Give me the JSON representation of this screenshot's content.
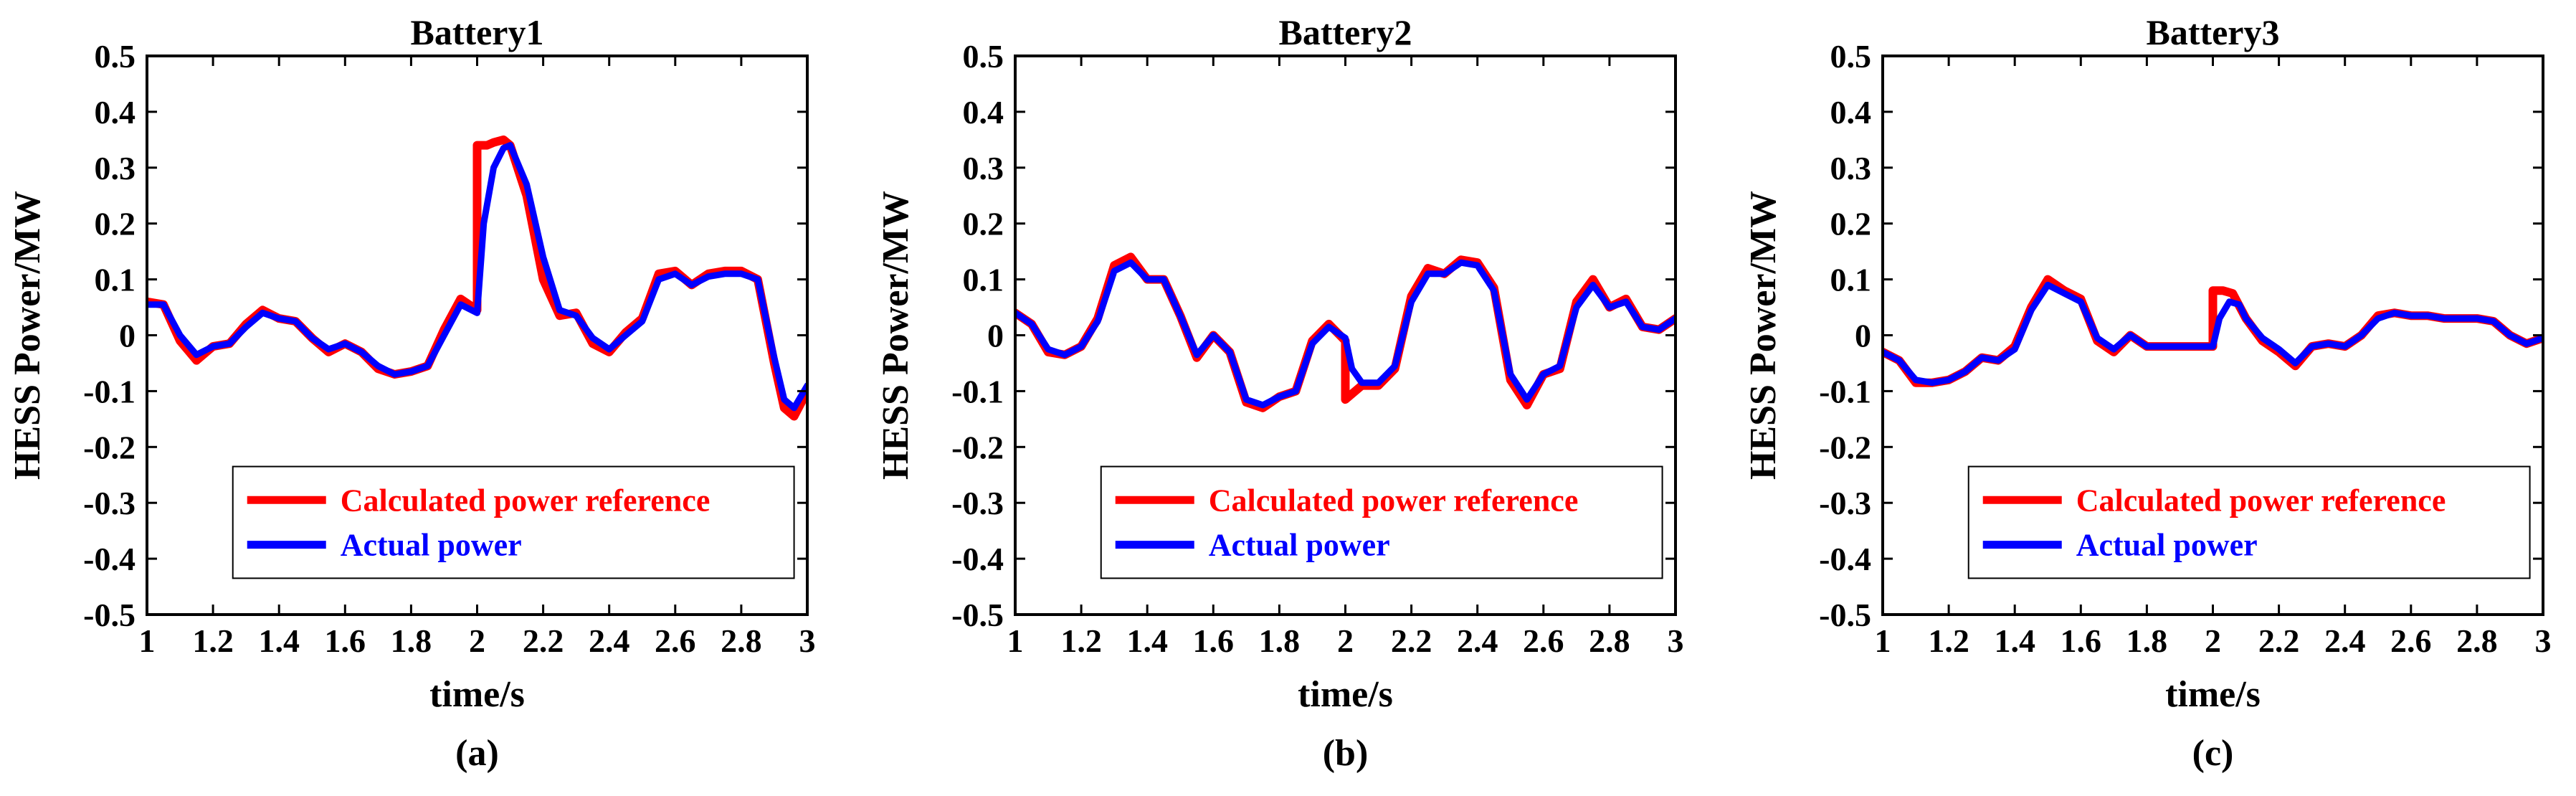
{
  "figure": {
    "ylabel": "HESS Power/MW",
    "xlabel": "time/s",
    "legend_labels": [
      "Calculated power reference",
      "Actual power"
    ],
    "colors": {
      "reference": "#ff0000",
      "actual": "#0000ff"
    }
  },
  "chart_data": [
    {
      "type": "line",
      "title": "Battery1",
      "panel_label": "(a)",
      "xlabel": "time/s",
      "ylabel": "HESS Power/MW",
      "xlim": [
        1,
        3
      ],
      "ylim": [
        -0.5,
        0.5
      ],
      "xticks": [
        "1",
        "1.2",
        "1.4",
        "1.6",
        "1.8",
        "2",
        "2.2",
        "2.4",
        "2.6",
        "2.8",
        "3"
      ],
      "yticks": [
        "-0.5",
        "-0.4",
        "-0.3",
        "-0.2",
        "-0.1",
        "0",
        "0.1",
        "0.2",
        "0.3",
        "0.4",
        "0.5"
      ],
      "legend": "bottom-right",
      "series": [
        {
          "name": "Calculated power reference",
          "color": "#ff0000",
          "x": [
            1,
            1.05,
            1.1,
            1.15,
            1.2,
            1.25,
            1.3,
            1.35,
            1.4,
            1.45,
            1.5,
            1.55,
            1.6,
            1.65,
            1.7,
            1.75,
            1.8,
            1.85,
            1.9,
            1.95,
            2.0,
            2.0,
            2.03,
            2.05,
            2.08,
            2.1,
            2.15,
            2.2,
            2.25,
            2.3,
            2.35,
            2.4,
            2.45,
            2.5,
            2.55,
            2.6,
            2.65,
            2.7,
            2.75,
            2.8,
            2.85,
            2.9,
            2.93,
            2.96,
            3.0
          ],
          "y": [
            0.06,
            0.055,
            -0.01,
            -0.045,
            -0.02,
            -0.015,
            0.02,
            0.045,
            0.03,
            0.025,
            -0.005,
            -0.03,
            -0.015,
            -0.03,
            -0.06,
            -0.07,
            -0.065,
            -0.055,
            0.01,
            0.065,
            0.045,
            0.34,
            0.34,
            0.345,
            0.35,
            0.34,
            0.25,
            0.1,
            0.035,
            0.04,
            -0.015,
            -0.03,
            0.005,
            0.03,
            0.11,
            0.115,
            0.09,
            0.11,
            0.115,
            0.115,
            0.1,
            -0.05,
            -0.13,
            -0.145,
            -0.1
          ]
        },
        {
          "name": "Actual power",
          "color": "#0000ff",
          "x": [
            1,
            1.05,
            1.1,
            1.15,
            1.2,
            1.25,
            1.3,
            1.35,
            1.4,
            1.45,
            1.5,
            1.55,
            1.6,
            1.65,
            1.7,
            1.75,
            1.8,
            1.85,
            1.9,
            1.95,
            2.0,
            2.02,
            2.05,
            2.08,
            2.1,
            2.15,
            2.2,
            2.25,
            2.3,
            2.35,
            2.4,
            2.45,
            2.5,
            2.55,
            2.6,
            2.65,
            2.7,
            2.75,
            2.8,
            2.85,
            2.9,
            2.93,
            2.96,
            3.0
          ],
          "y": [
            0.055,
            0.055,
            0.0,
            -0.035,
            -0.02,
            -0.015,
            0.015,
            0.04,
            0.03,
            0.025,
            -0.005,
            -0.025,
            -0.015,
            -0.03,
            -0.055,
            -0.07,
            -0.065,
            -0.055,
            0.0,
            0.055,
            0.04,
            0.2,
            0.3,
            0.335,
            0.34,
            0.27,
            0.14,
            0.045,
            0.035,
            -0.005,
            -0.025,
            0.0,
            0.025,
            0.1,
            0.11,
            0.09,
            0.105,
            0.11,
            0.11,
            0.1,
            -0.04,
            -0.115,
            -0.13,
            -0.09
          ]
        }
      ]
    },
    {
      "type": "line",
      "title": "Battery2",
      "panel_label": "(b)",
      "xlabel": "time/s",
      "ylabel": "HESS Power/MW",
      "xlim": [
        1,
        3
      ],
      "ylim": [
        -0.5,
        0.5
      ],
      "xticks": [
        "1",
        "1.2",
        "1.4",
        "1.6",
        "1.8",
        "2",
        "2.2",
        "2.4",
        "2.6",
        "2.8",
        "3"
      ],
      "yticks": [
        "-0.5",
        "-0.4",
        "-0.3",
        "-0.2",
        "-0.1",
        "0",
        "0.1",
        "0.2",
        "0.3",
        "0.4",
        "0.5"
      ],
      "legend": "bottom-right",
      "series": [
        {
          "name": "Calculated power reference",
          "color": "#ff0000",
          "x": [
            1,
            1.05,
            1.1,
            1.15,
            1.2,
            1.25,
            1.3,
            1.35,
            1.4,
            1.45,
            1.5,
            1.55,
            1.6,
            1.65,
            1.7,
            1.75,
            1.8,
            1.85,
            1.9,
            1.95,
            2.0,
            2.0,
            2.05,
            2.1,
            2.15,
            2.2,
            2.25,
            2.3,
            2.35,
            2.4,
            2.45,
            2.5,
            2.55,
            2.6,
            2.65,
            2.7,
            2.75,
            2.8,
            2.85,
            2.9,
            2.95,
            3.0
          ],
          "y": [
            0.04,
            0.02,
            -0.03,
            -0.035,
            -0.02,
            0.03,
            0.125,
            0.14,
            0.1,
            0.1,
            0.035,
            -0.04,
            0.0,
            -0.03,
            -0.12,
            -0.13,
            -0.11,
            -0.1,
            -0.01,
            0.02,
            -0.01,
            -0.115,
            -0.09,
            -0.09,
            -0.06,
            0.07,
            0.12,
            0.11,
            0.135,
            0.13,
            0.085,
            -0.08,
            -0.125,
            -0.07,
            -0.06,
            0.06,
            0.1,
            0.05,
            0.065,
            0.015,
            0.01,
            0.03
          ]
        },
        {
          "name": "Actual power",
          "color": "#0000ff",
          "x": [
            1,
            1.05,
            1.1,
            1.15,
            1.2,
            1.25,
            1.3,
            1.35,
            1.4,
            1.45,
            1.5,
            1.55,
            1.6,
            1.65,
            1.7,
            1.75,
            1.8,
            1.85,
            1.9,
            1.95,
            2.0,
            2.02,
            2.05,
            2.1,
            2.15,
            2.2,
            2.25,
            2.3,
            2.35,
            2.4,
            2.45,
            2.5,
            2.55,
            2.6,
            2.65,
            2.7,
            2.75,
            2.8,
            2.85,
            2.9,
            2.95,
            3.0
          ],
          "y": [
            0.04,
            0.02,
            -0.025,
            -0.035,
            -0.02,
            0.025,
            0.115,
            0.13,
            0.1,
            0.1,
            0.035,
            -0.035,
            0.0,
            -0.03,
            -0.115,
            -0.125,
            -0.11,
            -0.1,
            -0.015,
            0.015,
            -0.005,
            -0.06,
            -0.085,
            -0.085,
            -0.055,
            0.06,
            0.11,
            0.11,
            0.13,
            0.125,
            0.08,
            -0.07,
            -0.115,
            -0.07,
            -0.055,
            0.05,
            0.09,
            0.05,
            0.06,
            0.015,
            0.01,
            0.03
          ]
        }
      ]
    },
    {
      "type": "line",
      "title": "Battery3",
      "panel_label": "(c)",
      "xlabel": "time/s",
      "ylabel": "HESS Power/MW",
      "xlim": [
        1,
        3
      ],
      "ylim": [
        -0.5,
        0.5
      ],
      "xticks": [
        "1",
        "1.2",
        "1.4",
        "1.6",
        "1.8",
        "2",
        "2.2",
        "2.4",
        "2.6",
        "2.8",
        "3"
      ],
      "yticks": [
        "-0.5",
        "-0.4",
        "-0.3",
        "-0.2",
        "-0.1",
        "0",
        "0.1",
        "0.2",
        "0.3",
        "0.4",
        "0.5"
      ],
      "legend": "bottom-right",
      "series": [
        {
          "name": "Calculated power reference",
          "color": "#ff0000",
          "x": [
            1,
            1.05,
            1.1,
            1.15,
            1.2,
            1.25,
            1.3,
            1.35,
            1.4,
            1.45,
            1.5,
            1.55,
            1.6,
            1.65,
            1.7,
            1.75,
            1.8,
            1.85,
            1.9,
            1.95,
            2.0,
            2.0,
            2.03,
            2.06,
            2.1,
            2.15,
            2.2,
            2.25,
            2.3,
            2.35,
            2.4,
            2.45,
            2.5,
            2.55,
            2.6,
            2.65,
            2.7,
            2.75,
            2.8,
            2.85,
            2.9,
            2.95,
            3.0
          ],
          "y": [
            -0.03,
            -0.045,
            -0.085,
            -0.085,
            -0.08,
            -0.065,
            -0.04,
            -0.045,
            -0.02,
            0.05,
            0.1,
            0.08,
            0.065,
            -0.01,
            -0.03,
            0.0,
            -0.02,
            -0.02,
            -0.02,
            -0.02,
            -0.02,
            0.08,
            0.08,
            0.075,
            0.03,
            -0.01,
            -0.03,
            -0.055,
            -0.02,
            -0.015,
            -0.02,
            0.0,
            0.035,
            0.04,
            0.035,
            0.035,
            0.03,
            0.03,
            0.03,
            0.025,
            0.0,
            -0.015,
            -0.005
          ]
        },
        {
          "name": "Actual power",
          "color": "#0000ff",
          "x": [
            1,
            1.05,
            1.1,
            1.15,
            1.2,
            1.25,
            1.3,
            1.35,
            1.4,
            1.45,
            1.5,
            1.55,
            1.6,
            1.65,
            1.7,
            1.75,
            1.8,
            1.85,
            1.9,
            1.95,
            2.0,
            2.02,
            2.05,
            2.08,
            2.1,
            2.15,
            2.2,
            2.25,
            2.3,
            2.35,
            2.4,
            2.45,
            2.5,
            2.55,
            2.6,
            2.65,
            2.7,
            2.75,
            2.8,
            2.85,
            2.9,
            2.95,
            3.0
          ],
          "y": [
            -0.03,
            -0.045,
            -0.08,
            -0.085,
            -0.08,
            -0.065,
            -0.04,
            -0.045,
            -0.025,
            0.045,
            0.09,
            0.075,
            0.06,
            -0.005,
            -0.025,
            0.0,
            -0.02,
            -0.02,
            -0.02,
            -0.02,
            -0.02,
            0.03,
            0.06,
            0.055,
            0.03,
            -0.005,
            -0.025,
            -0.05,
            -0.02,
            -0.015,
            -0.02,
            0.0,
            0.03,
            0.04,
            0.035,
            0.035,
            0.03,
            0.03,
            0.03,
            0.025,
            0.0,
            -0.015,
            -0.005
          ]
        }
      ]
    }
  ]
}
